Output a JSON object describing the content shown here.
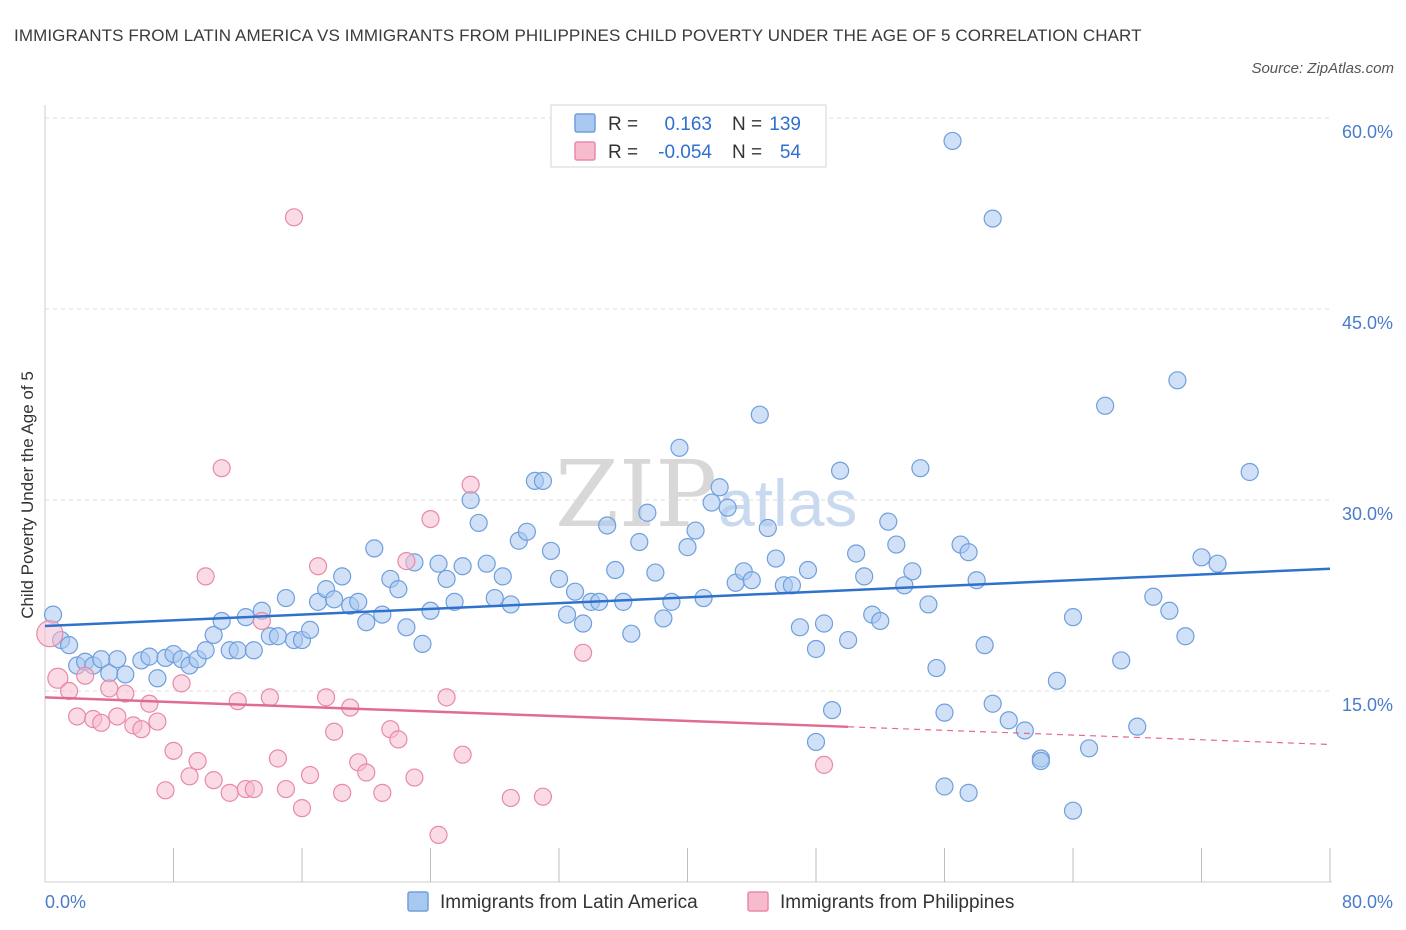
{
  "title": "IMMIGRANTS FROM LATIN AMERICA VS IMMIGRANTS FROM PHILIPPINES CHILD POVERTY UNDER THE AGE OF 5 CORRELATION CHART",
  "source": "Source: ZipAtlas.com",
  "watermark": {
    "part1": "ZIP",
    "part2": "atlas"
  },
  "legend": {
    "r_label": "R =",
    "n_label": "N =",
    "row1": {
      "r": "0.163",
      "n": "139"
    },
    "row2": {
      "r": "-0.054",
      "n": "54"
    }
  },
  "bottom_legend": {
    "series1": "Immigrants from Latin America",
    "series2": "Immigrants from Philippines"
  },
  "colors": {
    "blue_fill": "#a9c8f0",
    "blue_stroke": "#6f9fdc",
    "blue_line": "#2f72cc",
    "pink_fill": "#f6bccd",
    "pink_stroke": "#e88aa6",
    "pink_line": "#e06b94",
    "grid": "#dddddd",
    "axis_text": "#4a7ccc"
  },
  "chart_data": {
    "type": "scatter",
    "title": "IMMIGRANTS FROM LATIN AMERICA VS IMMIGRANTS FROM PHILIPPINES CHILD POVERTY UNDER THE AGE OF 5 CORRELATION CHART",
    "xlabel": "",
    "ylabel": "Child Poverty Under the Age of 5",
    "xlim": [
      0,
      80
    ],
    "ylim": [
      0,
      60
    ],
    "y_ticks": [
      15,
      30,
      45,
      60
    ],
    "y_tick_labels": [
      "15.0%",
      "30.0%",
      "45.0%",
      "60.0%"
    ],
    "x_tick_labels": [
      "0.0%",
      "80.0%"
    ],
    "x_minor_ticks": [
      8,
      16,
      24,
      32,
      40,
      48,
      56,
      64,
      72,
      80
    ],
    "series": [
      {
        "name": "Immigrants from Latin America",
        "R": 0.163,
        "N": 139,
        "trend": {
          "x": [
            0,
            80
          ],
          "y": [
            20.1,
            24.6
          ],
          "dashed_from": null
        },
        "points": [
          [
            0.5,
            21
          ],
          [
            1,
            19
          ],
          [
            1.5,
            18.6
          ],
          [
            2,
            17
          ],
          [
            2.5,
            17.3
          ],
          [
            3,
            17
          ],
          [
            3.5,
            17.5
          ],
          [
            4,
            16.4
          ],
          [
            4.5,
            17.5
          ],
          [
            5,
            16.3
          ],
          [
            6,
            17.4
          ],
          [
            6.5,
            17.7
          ],
          [
            7,
            16
          ],
          [
            7.5,
            17.6
          ],
          [
            8,
            17.9
          ],
          [
            8.5,
            17.5
          ],
          [
            9,
            17
          ],
          [
            9.5,
            17.5
          ],
          [
            10,
            18.2
          ],
          [
            10.5,
            19.4
          ],
          [
            11,
            20.5
          ],
          [
            11.5,
            18.2
          ],
          [
            12,
            18.2
          ],
          [
            12.5,
            20.8
          ],
          [
            13,
            18.2
          ],
          [
            13.5,
            21.3
          ],
          [
            14,
            19.3
          ],
          [
            14.5,
            19.3
          ],
          [
            15,
            22.3
          ],
          [
            15.5,
            19
          ],
          [
            16,
            19
          ],
          [
            16.5,
            19.8
          ],
          [
            17,
            22
          ],
          [
            17.5,
            23
          ],
          [
            18,
            22.2
          ],
          [
            18.5,
            24
          ],
          [
            19,
            21.7
          ],
          [
            19.5,
            22
          ],
          [
            20,
            20.4
          ],
          [
            20.5,
            26.2
          ],
          [
            21,
            21
          ],
          [
            21.5,
            23.8
          ],
          [
            22,
            23
          ],
          [
            22.5,
            20
          ],
          [
            23,
            25.1
          ],
          [
            23.5,
            18.7
          ],
          [
            24,
            21.3
          ],
          [
            24.5,
            25
          ],
          [
            25,
            23.8
          ],
          [
            25.5,
            22
          ],
          [
            26,
            24.8
          ],
          [
            26.5,
            30
          ],
          [
            27,
            28.2
          ],
          [
            27.5,
            25
          ],
          [
            28,
            22.3
          ],
          [
            28.5,
            24
          ],
          [
            29,
            21.8
          ],
          [
            29.5,
            26.8
          ],
          [
            30,
            27.5
          ],
          [
            30.5,
            31.5
          ],
          [
            31,
            31.5
          ],
          [
            31.5,
            26
          ],
          [
            32,
            23.8
          ],
          [
            32.5,
            21
          ],
          [
            33,
            22.8
          ],
          [
            33.5,
            20.3
          ],
          [
            34,
            22
          ],
          [
            34.5,
            22
          ],
          [
            35,
            28
          ],
          [
            35.5,
            24.5
          ],
          [
            36,
            22
          ],
          [
            36.5,
            19.5
          ],
          [
            37,
            26.7
          ],
          [
            37.5,
            29
          ],
          [
            38,
            24.3
          ],
          [
            38.5,
            20.7
          ],
          [
            39,
            22
          ],
          [
            39.5,
            34.1
          ],
          [
            40,
            26.3
          ],
          [
            40.5,
            27.6
          ],
          [
            41,
            22.3
          ],
          [
            41.5,
            29.8
          ],
          [
            42,
            31
          ],
          [
            42.5,
            29.4
          ],
          [
            43,
            23.5
          ],
          [
            43.5,
            24.4
          ],
          [
            44,
            23.7
          ],
          [
            44.5,
            36.7
          ],
          [
            45,
            27.8
          ],
          [
            45.5,
            25.4
          ],
          [
            46,
            23.3
          ],
          [
            46.5,
            23.3
          ],
          [
            47,
            20
          ],
          [
            47.5,
            24.5
          ],
          [
            48,
            18.3
          ],
          [
            48.5,
            20.3
          ],
          [
            49,
            13.5
          ],
          [
            49.5,
            32.3
          ],
          [
            50,
            19
          ],
          [
            50.5,
            25.8
          ],
          [
            51,
            24
          ],
          [
            51.5,
            21
          ],
          [
            52,
            20.5
          ],
          [
            52.5,
            28.3
          ],
          [
            53,
            26.5
          ],
          [
            53.5,
            23.3
          ],
          [
            54,
            24.4
          ],
          [
            54.5,
            32.5
          ],
          [
            55,
            21.8
          ],
          [
            55.5,
            16.8
          ],
          [
            56,
            13.3
          ],
          [
            57,
            26.5
          ],
          [
            57.5,
            25.9
          ],
          [
            58,
            23.7
          ],
          [
            58.5,
            18.6
          ],
          [
            59,
            14
          ],
          [
            60,
            12.7
          ],
          [
            61,
            11.9
          ],
          [
            62,
            9.7
          ],
          [
            63,
            15.8
          ],
          [
            64,
            20.8
          ],
          [
            65,
            10.5
          ],
          [
            66,
            37.4
          ],
          [
            67,
            17.4
          ],
          [
            68,
            12.2
          ],
          [
            69,
            22.4
          ],
          [
            70,
            21.3
          ],
          [
            70.5,
            39.4
          ],
          [
            71,
            19.3
          ],
          [
            72,
            25.5
          ],
          [
            73,
            25
          ],
          [
            75,
            32.2
          ],
          [
            56.5,
            58.2
          ],
          [
            59,
            52.1
          ],
          [
            57.5,
            7
          ],
          [
            56,
            7.5
          ],
          [
            64,
            5.6
          ],
          [
            48,
            11
          ],
          [
            62,
            9.5
          ]
        ]
      },
      {
        "name": "Immigrants from Philippines",
        "R": -0.054,
        "N": 54,
        "trend": {
          "x": [
            0,
            80
          ],
          "y": [
            14.5,
            10.8
          ],
          "dashed_from": 50
        },
        "points": [
          [
            0.3,
            19.5
          ],
          [
            0.8,
            16
          ],
          [
            1.5,
            15
          ],
          [
            2,
            13
          ],
          [
            2.5,
            16.2
          ],
          [
            3,
            12.8
          ],
          [
            3.5,
            12.5
          ],
          [
            4,
            15.2
          ],
          [
            4.5,
            13
          ],
          [
            5,
            14.8
          ],
          [
            5.5,
            12.3
          ],
          [
            6,
            12
          ],
          [
            6.5,
            14
          ],
          [
            7,
            12.6
          ],
          [
            7.5,
            7.2
          ],
          [
            8,
            10.3
          ],
          [
            8.5,
            15.6
          ],
          [
            9,
            8.3
          ],
          [
            9.5,
            9.5
          ],
          [
            10,
            24
          ],
          [
            10.5,
            8
          ],
          [
            11,
            32.5
          ],
          [
            11.5,
            7
          ],
          [
            12,
            14.2
          ],
          [
            12.5,
            7.3
          ],
          [
            13,
            7.3
          ],
          [
            13.5,
            20.5
          ],
          [
            14,
            14.5
          ],
          [
            14.5,
            9.7
          ],
          [
            15,
            7.3
          ],
          [
            15.5,
            52.2
          ],
          [
            16,
            5.8
          ],
          [
            16.5,
            8.4
          ],
          [
            17,
            24.8
          ],
          [
            17.5,
            14.5
          ],
          [
            18,
            11.8
          ],
          [
            18.5,
            7
          ],
          [
            19,
            13.7
          ],
          [
            19.5,
            9.4
          ],
          [
            20,
            8.6
          ],
          [
            21,
            7
          ],
          [
            21.5,
            12
          ],
          [
            22,
            11.2
          ],
          [
            22.5,
            25.2
          ],
          [
            23,
            8.2
          ],
          [
            24,
            28.5
          ],
          [
            24.5,
            3.7
          ],
          [
            25,
            14.5
          ],
          [
            26,
            10
          ],
          [
            26.5,
            31.2
          ],
          [
            29,
            6.6
          ],
          [
            31,
            6.7
          ],
          [
            33.5,
            18
          ],
          [
            48.5,
            9.2
          ]
        ]
      }
    ]
  }
}
